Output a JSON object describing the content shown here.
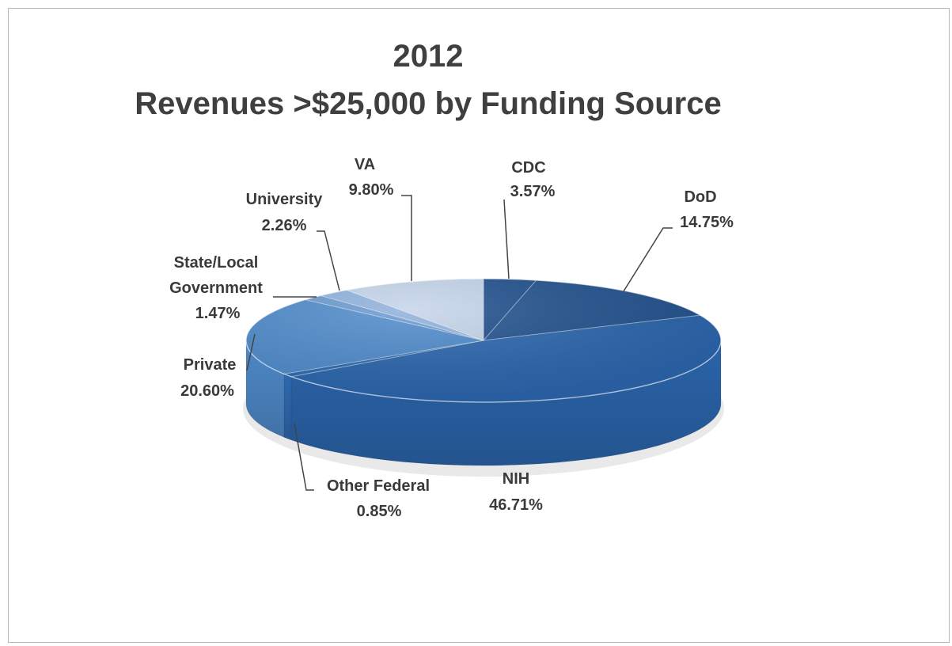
{
  "chart_data": {
    "type": "pie",
    "title": [
      "2012",
      "Revenues >$25,000 by Funding Source"
    ],
    "labels": [
      "CDC",
      "DoD",
      "NIH",
      "Other Federal",
      "Private",
      "State/Local Government",
      "University",
      "VA"
    ],
    "values": [
      3.57,
      14.75,
      46.71,
      0.85,
      20.6,
      1.47,
      2.26,
      9.8
    ],
    "value_labels": [
      "3.57%",
      "14.75%",
      "46.71%",
      "0.85%",
      "20.60%",
      "1.47%",
      "2.26%",
      "9.80%"
    ],
    "colors": [
      "#1f4f8d",
      "#23538f",
      "#2b66ad",
      "#2f6ab2",
      "#4f8bcb",
      "#6b9ad0",
      "#8fb1dc",
      "#c4d4ea"
    ]
  },
  "annotations": {
    "title_line1": "2012",
    "title_line2": "Revenues >$25,000 by Funding Source",
    "cdc_name": "CDC",
    "cdc_value": "3.57%",
    "dod_name": "DoD",
    "dod_value": "14.75%",
    "nih_name": "NIH",
    "nih_value": "46.71%",
    "other_name": "Other Federal",
    "other_value": "0.85%",
    "private_name": "Private",
    "private_value": "20.60%",
    "state_name_1": "State/Local",
    "state_name_2": "Government",
    "state_value": "1.47%",
    "university_name": "University",
    "university_value": "2.26%",
    "va_name": "VA",
    "va_value": "9.80%"
  }
}
